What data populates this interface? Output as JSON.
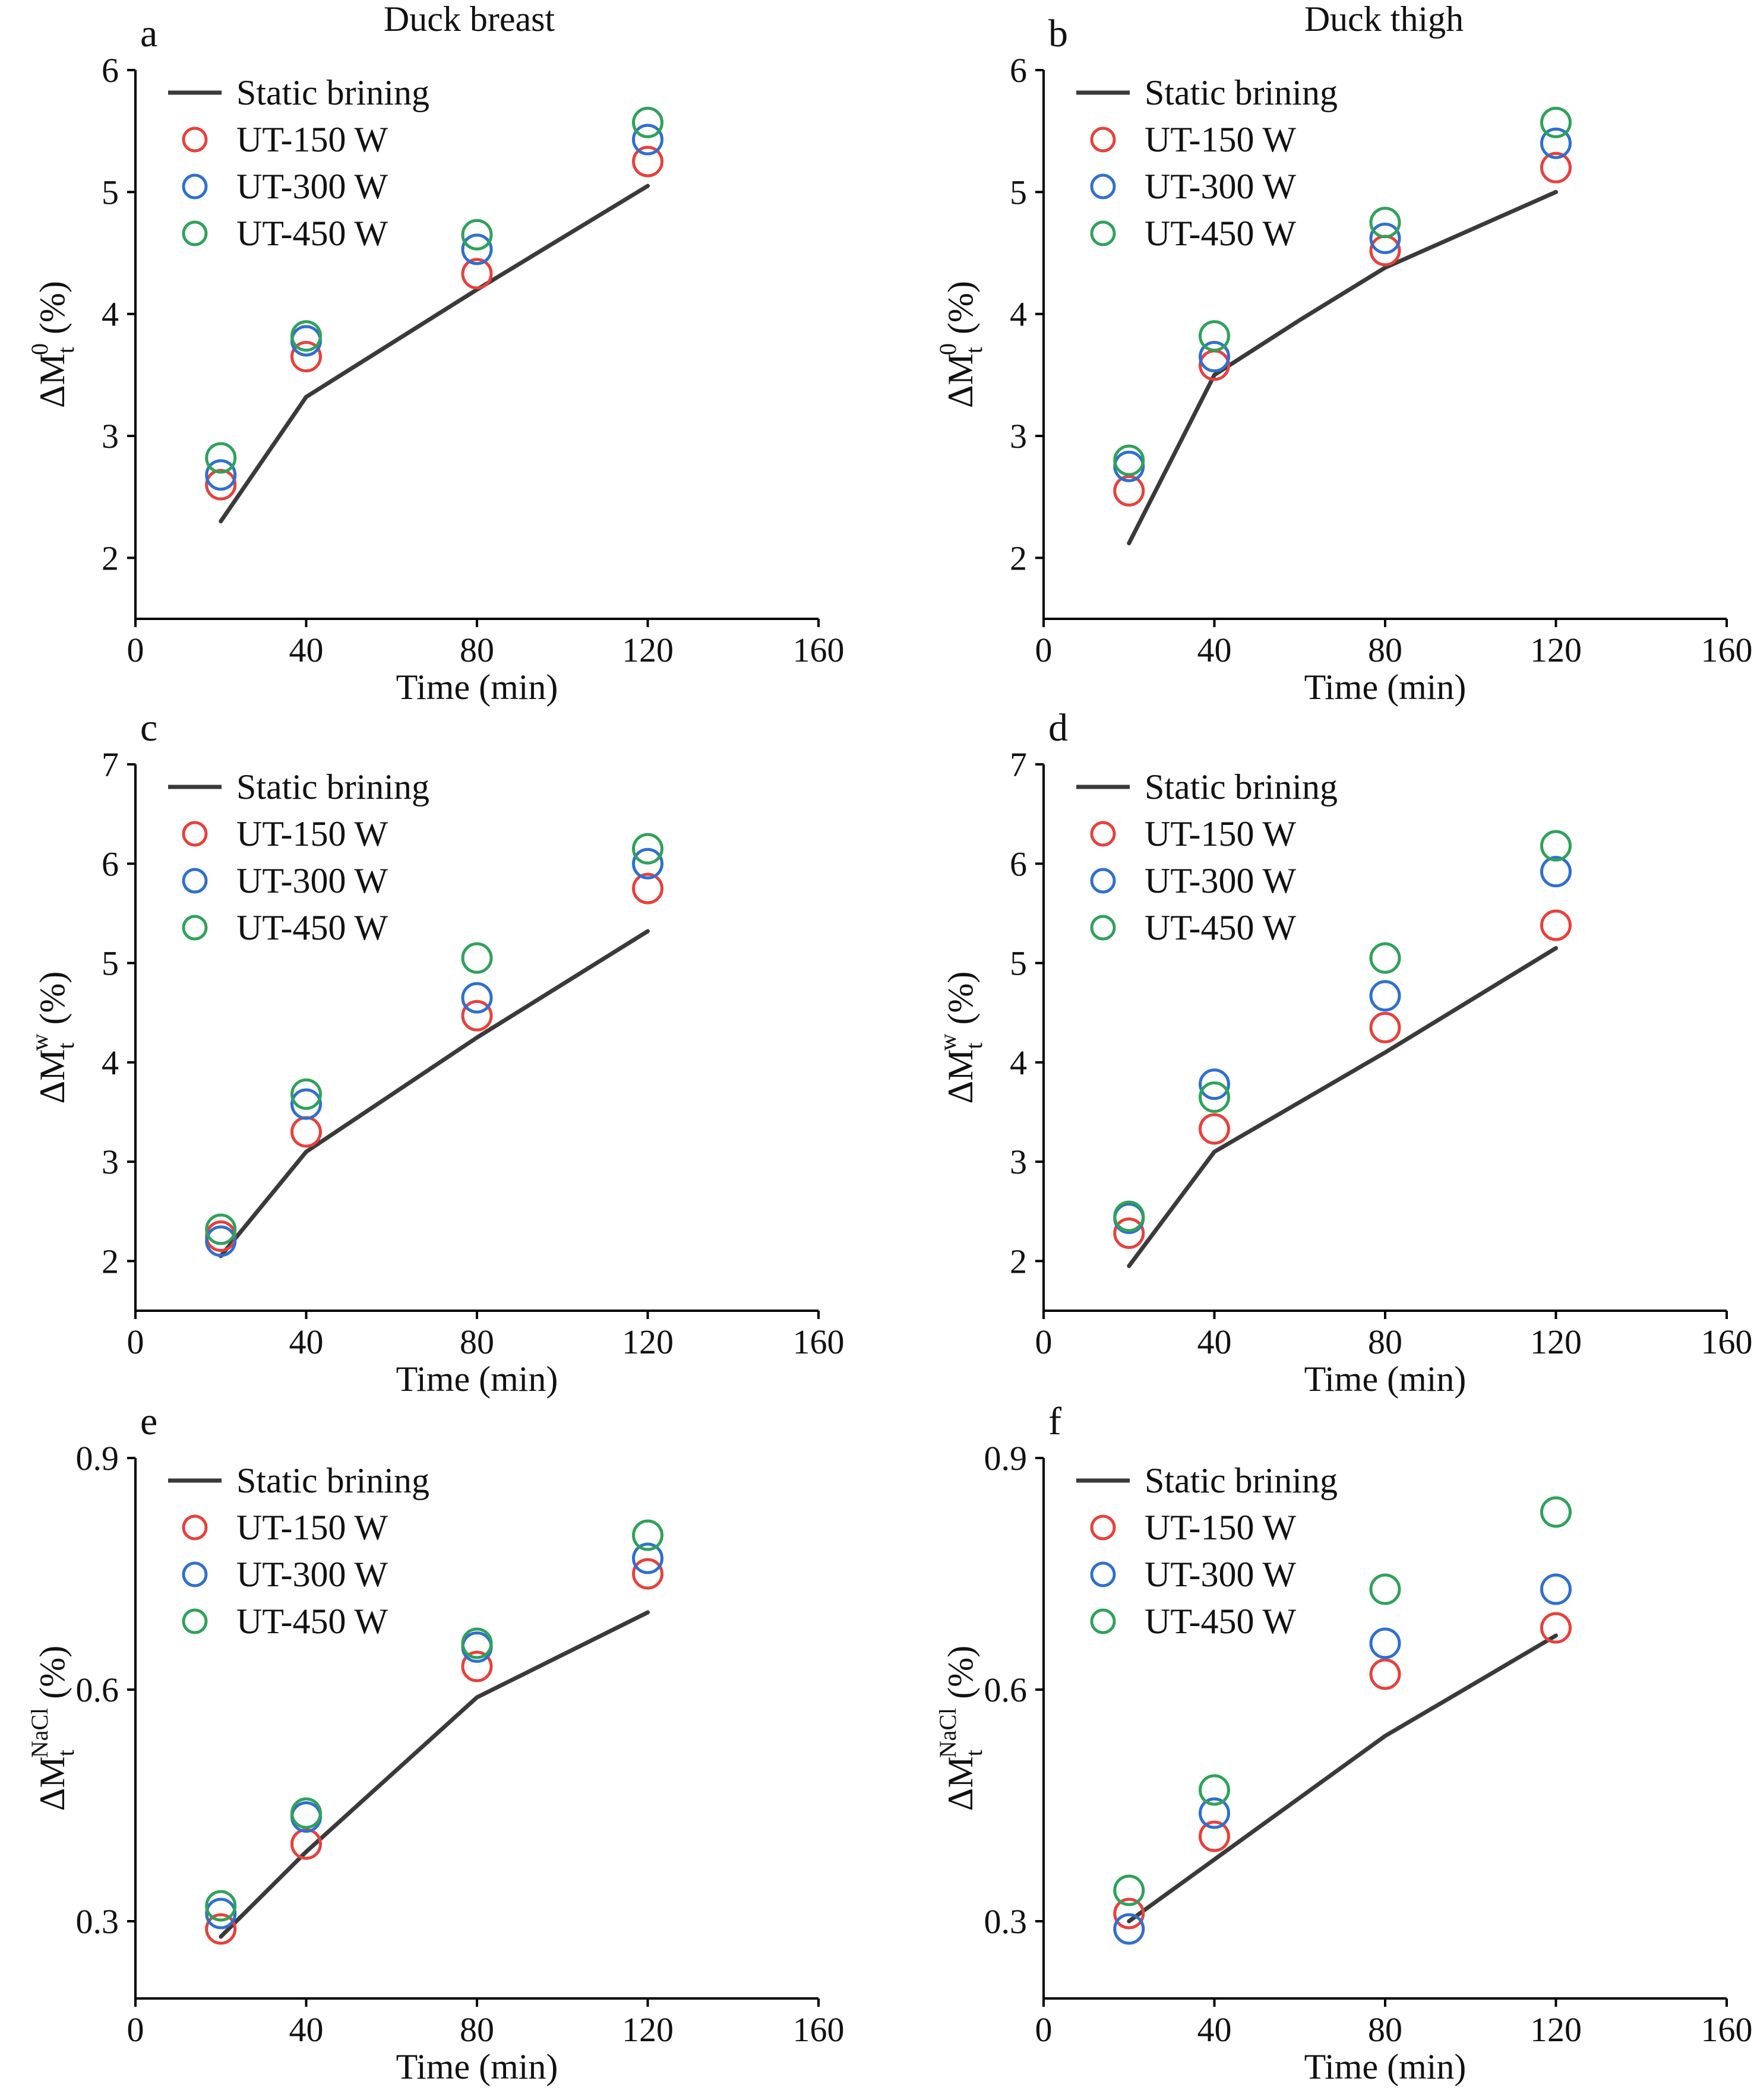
{
  "column_titles": [
    "Duck breast",
    "Duck thigh"
  ],
  "legend": {
    "line_label": "Static brining",
    "marker_labels": [
      "UT-150 W",
      "UT-300 W",
      "UT-450 W"
    ]
  },
  "colors": {
    "line": "#3a3a3a",
    "ut150": "#e8403b",
    "ut300": "#2f6fd0",
    "ut450": "#2fa25a",
    "axis": "#000000"
  },
  "chart_data": [
    {
      "panel": "a",
      "type": "line+scatter",
      "column_title": "Duck breast",
      "xlabel": "Time (min)",
      "ylabel_base": "ΔM",
      "ylabel_sub": "t",
      "ylabel_sup": "0",
      "ylabel_unit": " (%)",
      "xlim": [
        0,
        160
      ],
      "ylim": [
        1.5,
        6
      ],
      "xticks": [
        0,
        40,
        80,
        120,
        160
      ],
      "yticks": [
        2,
        3,
        4,
        5,
        6
      ],
      "ytick_labels": [
        "2",
        "3",
        "4",
        "5",
        "6"
      ],
      "legend_position": "top-left",
      "line": {
        "name": "Static brining",
        "x": [
          20,
          40,
          80,
          120
        ],
        "y": [
          2.3,
          3.32,
          4.2,
          5.05
        ]
      },
      "series": [
        {
          "name": "UT-150 W",
          "x": [
            20,
            40,
            80,
            120
          ],
          "y": [
            2.6,
            3.65,
            4.33,
            5.25
          ]
        },
        {
          "name": "UT-300 W",
          "x": [
            20,
            40,
            80,
            120
          ],
          "y": [
            2.68,
            3.78,
            4.53,
            5.43
          ]
        },
        {
          "name": "UT-450 W",
          "x": [
            20,
            40,
            80,
            120
          ],
          "y": [
            2.82,
            3.82,
            4.65,
            5.57
          ]
        }
      ]
    },
    {
      "panel": "b",
      "type": "line+scatter",
      "column_title": "Duck thigh",
      "xlabel": "Time (min)",
      "ylabel_base": "ΔM",
      "ylabel_sub": "t",
      "ylabel_sup": "0",
      "ylabel_unit": " (%)",
      "xlim": [
        0,
        160
      ],
      "ylim": [
        1.5,
        6
      ],
      "xticks": [
        0,
        40,
        80,
        120,
        160
      ],
      "yticks": [
        2,
        3,
        4,
        5,
        6
      ],
      "ytick_labels": [
        "2",
        "3",
        "4",
        "5",
        "6"
      ],
      "legend_position": "top-left",
      "line": {
        "name": "Static brining",
        "x": [
          20,
          40,
          60,
          80,
          120
        ],
        "y": [
          2.12,
          3.5,
          3.95,
          4.38,
          5.0
        ]
      },
      "series": [
        {
          "name": "UT-150 W",
          "x": [
            20,
            40,
            80,
            120
          ],
          "y": [
            2.55,
            3.58,
            4.52,
            5.2
          ]
        },
        {
          "name": "UT-300 W",
          "x": [
            20,
            40,
            80,
            120
          ],
          "y": [
            2.75,
            3.65,
            4.62,
            5.4
          ]
        },
        {
          "name": "UT-450 W",
          "x": [
            20,
            40,
            80,
            120
          ],
          "y": [
            2.8,
            3.82,
            4.75,
            5.57
          ]
        }
      ]
    },
    {
      "panel": "c",
      "type": "line+scatter",
      "xlabel": "Time (min)",
      "ylabel_base": "ΔM",
      "ylabel_sub": "t",
      "ylabel_sup": "w",
      "ylabel_unit": " (%)",
      "xlim": [
        0,
        160
      ],
      "ylim": [
        1.5,
        7
      ],
      "xticks": [
        0,
        40,
        80,
        120,
        160
      ],
      "yticks": [
        2,
        3,
        4,
        5,
        6,
        7
      ],
      "ytick_labels": [
        "2",
        "3",
        "4",
        "5",
        "6",
        "7"
      ],
      "legend_position": "top-left",
      "line": {
        "name": "Static brining",
        "x": [
          20,
          40,
          80,
          120
        ],
        "y": [
          2.05,
          3.1,
          4.25,
          5.32
        ]
      },
      "series": [
        {
          "name": "UT-150 W",
          "x": [
            20,
            40,
            80,
            120
          ],
          "y": [
            2.25,
            3.3,
            4.47,
            5.75
          ]
        },
        {
          "name": "UT-300 W",
          "x": [
            20,
            40,
            80,
            120
          ],
          "y": [
            2.2,
            3.58,
            4.65,
            6.0
          ]
        },
        {
          "name": "UT-450 W",
          "x": [
            20,
            40,
            80,
            120
          ],
          "y": [
            2.32,
            3.68,
            5.05,
            6.15
          ]
        }
      ]
    },
    {
      "panel": "d",
      "type": "line+scatter",
      "xlabel": "Time (min)",
      "ylabel_base": "ΔM",
      "ylabel_sub": "t",
      "ylabel_sup": "w",
      "ylabel_unit": " (%)",
      "xlim": [
        0,
        160
      ],
      "ylim": [
        1.5,
        7
      ],
      "xticks": [
        0,
        40,
        80,
        120,
        160
      ],
      "yticks": [
        2,
        3,
        4,
        5,
        6,
        7
      ],
      "ytick_labels": [
        "2",
        "3",
        "4",
        "5",
        "6",
        "7"
      ],
      "legend_position": "top-left",
      "line": {
        "name": "Static brining",
        "x": [
          20,
          40,
          80,
          120
        ],
        "y": [
          1.95,
          3.1,
          4.1,
          5.15
        ]
      },
      "series": [
        {
          "name": "UT-150 W",
          "x": [
            20,
            40,
            80,
            120
          ],
          "y": [
            2.28,
            3.33,
            4.35,
            5.38
          ]
        },
        {
          "name": "UT-300 W",
          "x": [
            20,
            40,
            80,
            120
          ],
          "y": [
            2.43,
            3.78,
            4.67,
            5.92
          ]
        },
        {
          "name": "UT-450 W",
          "x": [
            20,
            40,
            80,
            120
          ],
          "y": [
            2.45,
            3.65,
            5.05,
            6.18
          ]
        }
      ]
    },
    {
      "panel": "e",
      "type": "line+scatter",
      "xlabel": "Time (min)",
      "ylabel_base": "ΔM",
      "ylabel_sub": "t",
      "ylabel_sup": "NaCl",
      "ylabel_unit": " (%)",
      "xlim": [
        0,
        160
      ],
      "ylim": [
        0.2,
        0.9
      ],
      "xticks": [
        0,
        40,
        80,
        120,
        160
      ],
      "yticks": [
        0.3,
        0.6,
        0.9
      ],
      "ytick_labels": [
        "0.3",
        "0.6",
        "0.9"
      ],
      "legend_position": "top-left",
      "line": {
        "name": "Static brining",
        "x": [
          20,
          40,
          80,
          120
        ],
        "y": [
          0.28,
          0.39,
          0.59,
          0.7
        ]
      },
      "series": [
        {
          "name": "UT-150 W",
          "x": [
            20,
            40,
            80,
            120
          ],
          "y": [
            0.29,
            0.4,
            0.63,
            0.75
          ]
        },
        {
          "name": "UT-300 W",
          "x": [
            20,
            40,
            80,
            120
          ],
          "y": [
            0.31,
            0.435,
            0.655,
            0.77
          ]
        },
        {
          "name": "UT-450 W",
          "x": [
            20,
            40,
            80,
            120
          ],
          "y": [
            0.32,
            0.44,
            0.66,
            0.8
          ]
        }
      ]
    },
    {
      "panel": "f",
      "type": "line+scatter",
      "xlabel": "Time (min)",
      "ylabel_base": "ΔM",
      "ylabel_sub": "t",
      "ylabel_sup": "NaCl",
      "ylabel_unit": " (%)",
      "xlim": [
        0,
        160
      ],
      "ylim": [
        0.2,
        0.9
      ],
      "xticks": [
        0,
        40,
        80,
        120,
        160
      ],
      "yticks": [
        0.3,
        0.6,
        0.9
      ],
      "ytick_labels": [
        "0.3",
        "0.6",
        "0.9"
      ],
      "legend_position": "top-left",
      "line": {
        "name": "Static brining",
        "x": [
          20,
          40,
          80,
          120
        ],
        "y": [
          0.3,
          0.38,
          0.54,
          0.67
        ]
      },
      "series": [
        {
          "name": "UT-150 W",
          "x": [
            20,
            40,
            80,
            120
          ],
          "y": [
            0.31,
            0.41,
            0.62,
            0.68
          ]
        },
        {
          "name": "UT-300 W",
          "x": [
            20,
            40,
            80,
            120
          ],
          "y": [
            0.29,
            0.44,
            0.66,
            0.73
          ]
        },
        {
          "name": "UT-450 W",
          "x": [
            20,
            40,
            80,
            120
          ],
          "y": [
            0.34,
            0.47,
            0.73,
            0.83
          ]
        }
      ]
    }
  ]
}
